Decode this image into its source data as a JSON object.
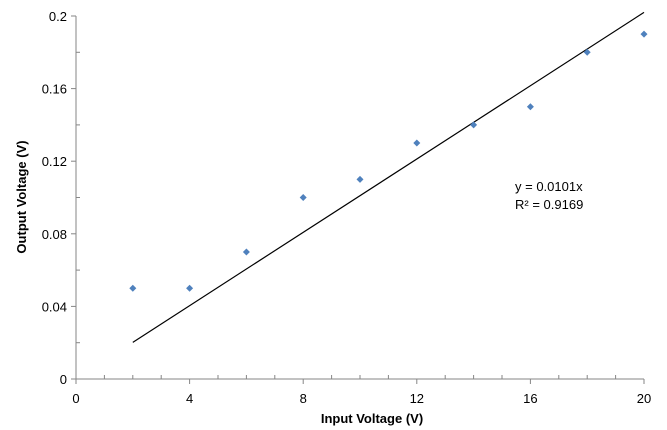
{
  "chart_data": {
    "type": "scatter",
    "xlabel": "Input Voltage (V)",
    "ylabel": "Output Voltage (V)",
    "xlim": [
      0,
      20
    ],
    "ylim": [
      0,
      0.2
    ],
    "x_ticks": [
      0,
      4,
      8,
      12,
      16,
      20
    ],
    "y_ticks": [
      0,
      0.04,
      0.08,
      0.12,
      0.16,
      0.2
    ],
    "x_tick_labels": [
      "0",
      "4",
      "8",
      "12",
      "16",
      "20"
    ],
    "y_tick_labels": [
      "0",
      "0.04",
      "0.08",
      "0.12",
      "0.16",
      "0.2"
    ],
    "grid": false,
    "series": [
      {
        "x": [
          2,
          4,
          6,
          8,
          10,
          12,
          14,
          16,
          18,
          20
        ],
        "y": [
          0.05,
          0.05,
          0.07,
          0.1,
          0.11,
          0.13,
          0.14,
          0.15,
          0.18,
          0.19
        ],
        "color": "#4F81BD",
        "marker": "diamond"
      }
    ],
    "trendline": {
      "type": "linear",
      "slope": 0.0101,
      "intercept": 0,
      "x_range": [
        2,
        20
      ],
      "color": "#000000"
    },
    "annotations": [
      "y = 0.0101x",
      "R² = 0.9169"
    ]
  }
}
